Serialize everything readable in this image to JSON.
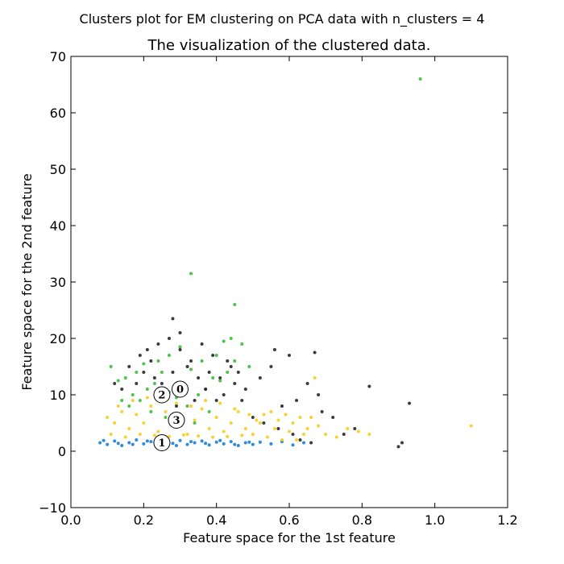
{
  "chart_data": {
    "type": "scatter",
    "suptitle": "Clusters plot for EM clustering on PCA data with n_clusters = 4",
    "title": "The visualization of the clustered data.",
    "xlabel": "Feature space for the 1st feature",
    "ylabel": "Feature space for the 2nd feature",
    "xlim": [
      0.0,
      1.2
    ],
    "ylim": [
      -10,
      70
    ],
    "xticks": [
      "0.0",
      "0.2",
      "0.4",
      "0.6",
      "0.8",
      "1.0",
      "1.2"
    ],
    "yticks": [
      "−10",
      "0",
      "10",
      "20",
      "30",
      "40",
      "50",
      "60",
      "70"
    ],
    "grid": false,
    "colors": {
      "cluster_0": "#1a1a1a",
      "cluster_1": "#0a77d6",
      "cluster_2": "#2fb82f",
      "cluster_3": "#f7c90f"
    },
    "series": [
      {
        "cluster": 0,
        "points": [
          [
            0.25,
            12
          ],
          [
            0.28,
            14
          ],
          [
            0.31,
            11
          ],
          [
            0.22,
            16
          ],
          [
            0.35,
            13
          ],
          [
            0.4,
            9
          ],
          [
            0.45,
            12
          ],
          [
            0.3,
            18
          ],
          [
            0.27,
            20
          ],
          [
            0.33,
            16
          ],
          [
            0.38,
            14
          ],
          [
            0.42,
            10
          ],
          [
            0.48,
            11
          ],
          [
            0.52,
            13
          ],
          [
            0.55,
            15
          ],
          [
            0.58,
            8
          ],
          [
            0.62,
            9
          ],
          [
            0.65,
            12
          ],
          [
            0.68,
            10
          ],
          [
            0.6,
            17
          ],
          [
            0.56,
            18
          ],
          [
            0.67,
            17.5
          ],
          [
            0.72,
            6
          ],
          [
            0.75,
            3
          ],
          [
            0.78,
            4
          ],
          [
            0.82,
            11.5
          ],
          [
            0.91,
            1.5
          ],
          [
            0.9,
            0.8
          ],
          [
            0.93,
            8.5
          ],
          [
            0.28,
            23.5
          ],
          [
            0.3,
            21
          ],
          [
            0.24,
            19
          ],
          [
            0.2,
            14
          ],
          [
            0.18,
            12
          ],
          [
            0.16,
            15
          ],
          [
            0.14,
            11
          ],
          [
            0.12,
            12
          ],
          [
            0.26,
            10
          ],
          [
            0.29,
            8
          ],
          [
            0.34,
            9
          ],
          [
            0.37,
            11
          ],
          [
            0.41,
            13
          ],
          [
            0.44,
            15
          ],
          [
            0.47,
            9
          ],
          [
            0.5,
            6
          ],
          [
            0.53,
            5
          ],
          [
            0.57,
            4
          ],
          [
            0.61,
            3
          ],
          [
            0.63,
            2
          ],
          [
            0.66,
            1.5
          ],
          [
            0.69,
            7
          ],
          [
            0.36,
            19
          ],
          [
            0.39,
            17
          ],
          [
            0.43,
            16
          ],
          [
            0.46,
            14
          ],
          [
            0.32,
            15
          ],
          [
            0.23,
            13
          ],
          [
            0.21,
            18
          ],
          [
            0.19,
            17
          ]
        ]
      },
      {
        "cluster": 1,
        "points": [
          [
            0.08,
            1.5
          ],
          [
            0.1,
            1.2
          ],
          [
            0.12,
            1.8
          ],
          [
            0.14,
            1.0
          ],
          [
            0.16,
            1.5
          ],
          [
            0.18,
            2.0
          ],
          [
            0.2,
            1.3
          ],
          [
            0.22,
            1.7
          ],
          [
            0.24,
            1.1
          ],
          [
            0.26,
            1.6
          ],
          [
            0.28,
            1.4
          ],
          [
            0.3,
            1.9
          ],
          [
            0.32,
            1.2
          ],
          [
            0.34,
            1.5
          ],
          [
            0.36,
            1.8
          ],
          [
            0.38,
            1.1
          ],
          [
            0.4,
            1.6
          ],
          [
            0.42,
            1.3
          ],
          [
            0.44,
            1.7
          ],
          [
            0.46,
            1.0
          ],
          [
            0.48,
            1.5
          ],
          [
            0.5,
            1.2
          ],
          [
            0.52,
            1.6
          ],
          [
            0.55,
            1.3
          ],
          [
            0.58,
            1.7
          ],
          [
            0.61,
            1.1
          ],
          [
            0.64,
            1.5
          ],
          [
            0.09,
            1.9
          ],
          [
            0.13,
            1.4
          ],
          [
            0.17,
            1.2
          ],
          [
            0.21,
            1.8
          ],
          [
            0.25,
            1.5
          ],
          [
            0.29,
            1.0
          ],
          [
            0.33,
            1.7
          ],
          [
            0.37,
            1.4
          ],
          [
            0.41,
            1.9
          ],
          [
            0.45,
            1.2
          ],
          [
            0.49,
            1.6
          ]
        ]
      },
      {
        "cluster": 2,
        "points": [
          [
            0.96,
            66
          ],
          [
            0.33,
            31.5
          ],
          [
            0.45,
            26
          ],
          [
            0.11,
            15
          ],
          [
            0.13,
            12.5
          ],
          [
            0.15,
            13
          ],
          [
            0.17,
            10
          ],
          [
            0.19,
            9
          ],
          [
            0.21,
            11
          ],
          [
            0.23,
            12
          ],
          [
            0.25,
            14
          ],
          [
            0.27,
            10.5
          ],
          [
            0.29,
            9.5
          ],
          [
            0.31,
            12
          ],
          [
            0.33,
            14.5
          ],
          [
            0.35,
            10
          ],
          [
            0.37,
            11
          ],
          [
            0.39,
            13
          ],
          [
            0.41,
            12.5
          ],
          [
            0.43,
            14
          ],
          [
            0.45,
            16
          ],
          [
            0.47,
            19
          ],
          [
            0.44,
            20
          ],
          [
            0.42,
            19.5
          ],
          [
            0.4,
            17
          ],
          [
            0.49,
            15
          ],
          [
            0.36,
            16
          ],
          [
            0.3,
            18.5
          ],
          [
            0.27,
            17
          ],
          [
            0.24,
            16
          ],
          [
            0.2,
            15.5
          ],
          [
            0.18,
            14
          ],
          [
            0.16,
            8
          ],
          [
            0.14,
            9
          ],
          [
            0.22,
            7
          ],
          [
            0.26,
            6
          ],
          [
            0.32,
            8
          ],
          [
            0.38,
            7
          ],
          [
            0.34,
            5
          ]
        ]
      },
      {
        "cluster": 3,
        "points": [
          [
            1.1,
            4.5
          ],
          [
            0.1,
            6
          ],
          [
            0.12,
            5
          ],
          [
            0.14,
            7
          ],
          [
            0.16,
            4
          ],
          [
            0.18,
            6.5
          ],
          [
            0.2,
            5
          ],
          [
            0.22,
            8
          ],
          [
            0.24,
            3.5
          ],
          [
            0.26,
            7
          ],
          [
            0.28,
            4.5
          ],
          [
            0.3,
            6
          ],
          [
            0.32,
            3
          ],
          [
            0.34,
            5.5
          ],
          [
            0.36,
            7.5
          ],
          [
            0.38,
            4
          ],
          [
            0.4,
            6
          ],
          [
            0.42,
            3.5
          ],
          [
            0.44,
            5
          ],
          [
            0.46,
            7
          ],
          [
            0.48,
            4
          ],
          [
            0.5,
            3
          ],
          [
            0.52,
            5
          ],
          [
            0.54,
            2.5
          ],
          [
            0.56,
            4
          ],
          [
            0.58,
            2
          ],
          [
            0.6,
            3.5
          ],
          [
            0.62,
            2
          ],
          [
            0.64,
            3
          ],
          [
            0.66,
            6
          ],
          [
            0.68,
            4.5
          ],
          [
            0.7,
            3
          ],
          [
            0.73,
            2.5
          ],
          [
            0.76,
            4
          ],
          [
            0.79,
            3.5
          ],
          [
            0.82,
            3
          ],
          [
            0.11,
            3
          ],
          [
            0.13,
            8
          ],
          [
            0.15,
            2.5
          ],
          [
            0.17,
            9
          ],
          [
            0.19,
            3
          ],
          [
            0.21,
            9.5
          ],
          [
            0.23,
            2.8
          ],
          [
            0.25,
            9
          ],
          [
            0.27,
            2.6
          ],
          [
            0.29,
            8.5
          ],
          [
            0.31,
            2.9
          ],
          [
            0.33,
            8
          ],
          [
            0.35,
            2.7
          ],
          [
            0.37,
            9
          ],
          [
            0.39,
            2.5
          ],
          [
            0.41,
            8.5
          ],
          [
            0.43,
            2.6
          ],
          [
            0.45,
            7.5
          ],
          [
            0.47,
            2.8
          ],
          [
            0.49,
            6.5
          ],
          [
            0.51,
            5.5
          ],
          [
            0.53,
            6.5
          ],
          [
            0.55,
            7
          ],
          [
            0.57,
            5.5
          ],
          [
            0.59,
            6.5
          ],
          [
            0.61,
            5
          ],
          [
            0.63,
            6
          ],
          [
            0.65,
            4
          ],
          [
            0.67,
            13
          ]
        ]
      }
    ],
    "centroids": [
      {
        "label": "0",
        "x": 0.3,
        "y": 11
      },
      {
        "label": "1",
        "x": 0.25,
        "y": 1.5
      },
      {
        "label": "2",
        "x": 0.25,
        "y": 10
      },
      {
        "label": "3",
        "x": 0.29,
        "y": 5.5
      }
    ]
  }
}
